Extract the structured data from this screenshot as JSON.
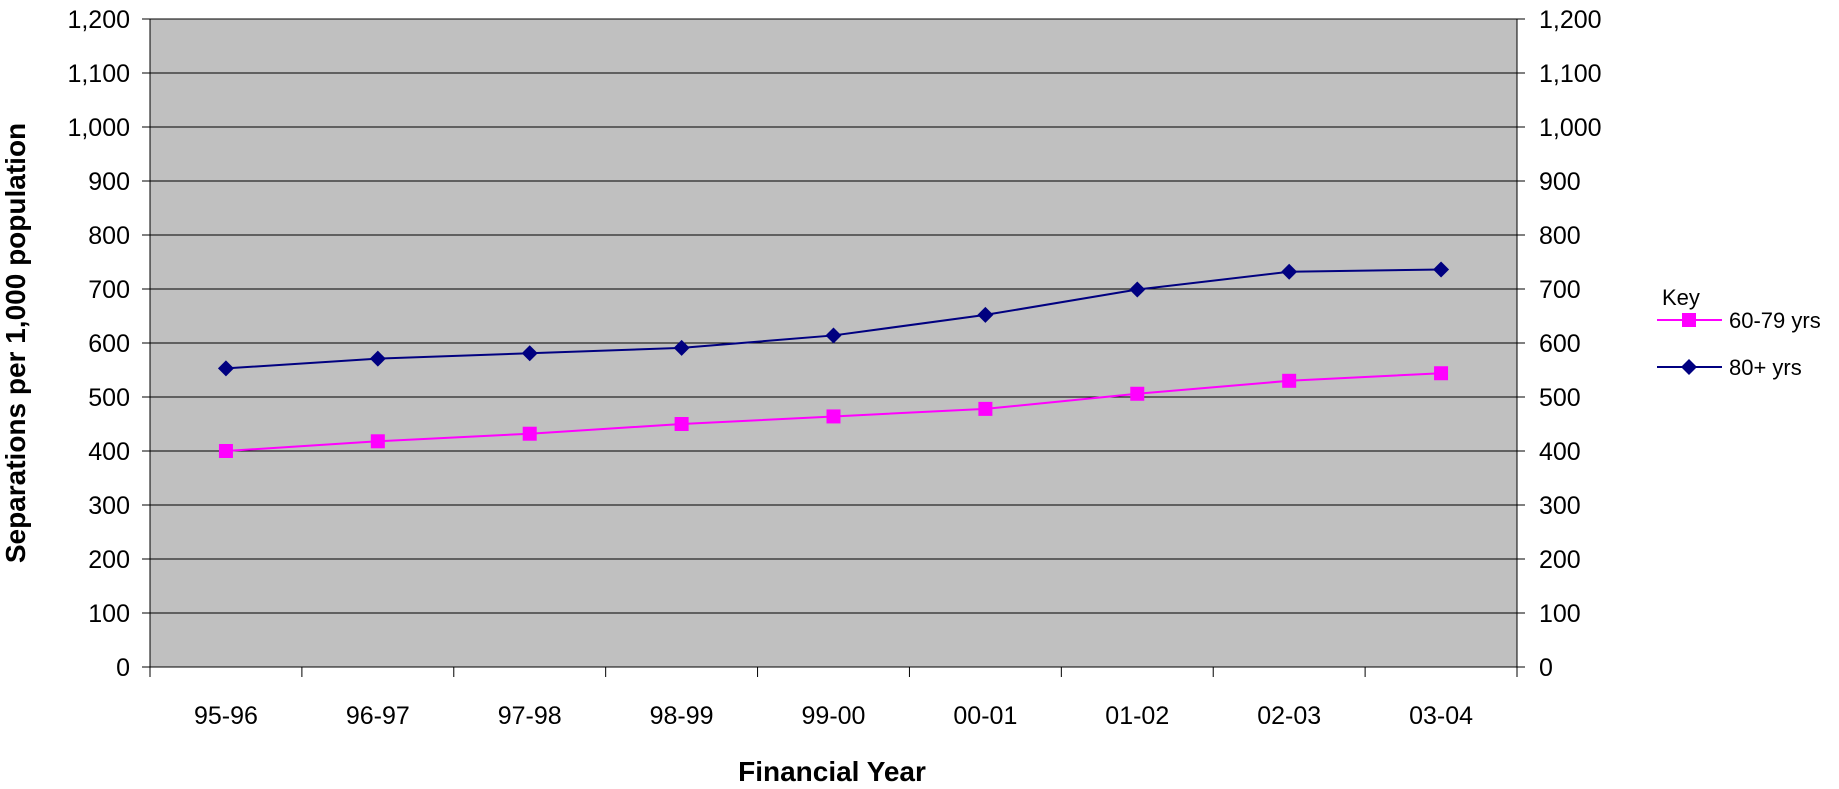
{
  "chart_data": {
    "type": "line",
    "categories": [
      "95-96",
      "96-97",
      "97-98",
      "98-99",
      "99-00",
      "00-01",
      "01-02",
      "02-03",
      "03-04"
    ],
    "series": [
      {
        "name": "60-79 yrs",
        "color": "#ff00ff",
        "marker": "square",
        "values": [
          400,
          418,
          432,
          450,
          464,
          478,
          506,
          530,
          544
        ]
      },
      {
        "name": "80+ yrs",
        "color": "#000080",
        "marker": "diamond",
        "values": [
          553,
          571,
          581,
          591,
          614,
          652,
          699,
          732,
          736
        ]
      }
    ],
    "xlabel": "Financial Year",
    "ylabel": "Separations per 1,000 population",
    "ylim": [
      0,
      1200
    ],
    "y_ticks": [
      0,
      100,
      200,
      300,
      400,
      500,
      600,
      700,
      800,
      900,
      1000,
      1100,
      1200
    ],
    "y_tick_labels": [
      "0",
      "100",
      "200",
      "300",
      "400",
      "500",
      "600",
      "700",
      "800",
      "900",
      "1,000",
      "1,100",
      "1,200"
    ],
    "secondary_y_axis": true,
    "grid": true,
    "plot_background": "#c0c0c0",
    "legend": {
      "title": "Key",
      "position": "right"
    }
  }
}
